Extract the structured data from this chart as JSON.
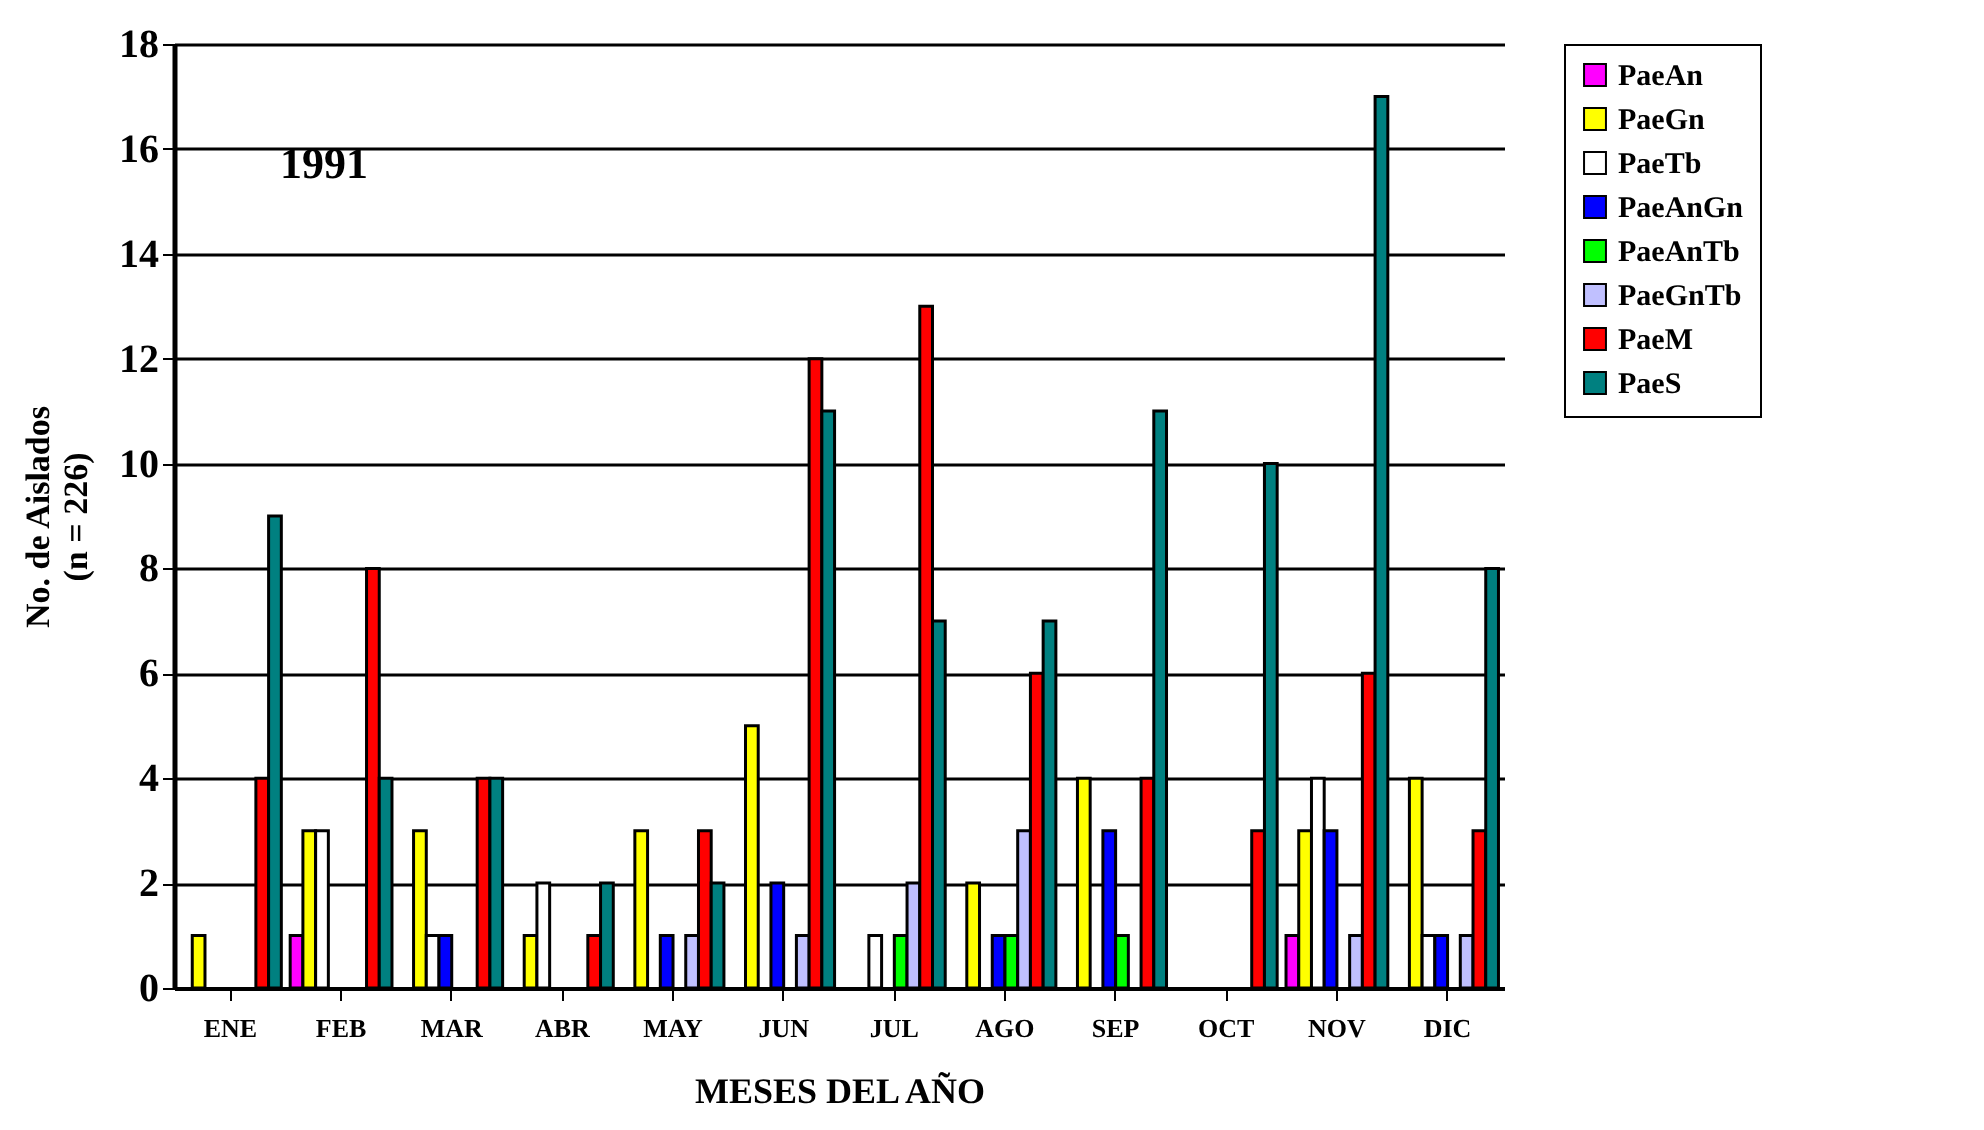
{
  "chart_data": {
    "type": "bar",
    "xlabel": "MESES DEL AÑO",
    "ylabel": "No. de Aislados\n(n = 226)",
    "categories": [
      "ENE",
      "FEB",
      "MAR",
      "ABR",
      "MAY",
      "JUN",
      "JUL",
      "AGO",
      "SEP",
      "OCT",
      "NOV",
      "DIC"
    ],
    "series": [
      {
        "name": "PaeAn",
        "color": "#ff00ff",
        "values": [
          0,
          1,
          0,
          0,
          0,
          0,
          0,
          0,
          0,
          0,
          1,
          0
        ]
      },
      {
        "name": "PaeGn",
        "color": "#ffff00",
        "values": [
          1,
          3,
          3,
          1,
          3,
          5,
          0,
          2,
          4,
          0,
          3,
          4
        ]
      },
      {
        "name": "PaeTb",
        "color": "#ffffff",
        "values": [
          0,
          3,
          1,
          2,
          0,
          0,
          1,
          0,
          0,
          0,
          4,
          1
        ]
      },
      {
        "name": "PaeAnGn",
        "color": "#0000ff",
        "values": [
          0,
          0,
          1,
          0,
          1,
          2,
          0,
          1,
          3,
          0,
          3,
          1
        ]
      },
      {
        "name": "PaeAnTb",
        "color": "#00ff00",
        "values": [
          0,
          0,
          0,
          0,
          0,
          0,
          1,
          1,
          1,
          0,
          0,
          0
        ]
      },
      {
        "name": "PaeGnTb",
        "color": "#c0c0ff",
        "values": [
          0,
          0,
          0,
          0,
          1,
          1,
          2,
          3,
          0,
          0,
          1,
          1
        ]
      },
      {
        "name": "PaeM",
        "color": "#ff0000",
        "values": [
          4,
          8,
          4,
          1,
          3,
          12,
          13,
          6,
          4,
          3,
          6,
          3
        ]
      },
      {
        "name": "PaeS",
        "color": "#008080",
        "values": [
          9,
          4,
          4,
          2,
          2,
          11,
          7,
          7,
          11,
          10,
          17,
          8
        ]
      }
    ],
    "ylim": [
      0,
      18
    ],
    "yticks": [
      0,
      2,
      4,
      6,
      8,
      10,
      12,
      14,
      16,
      18
    ],
    "grid": "y",
    "legend": "right",
    "annotations": [
      "1991"
    ]
  }
}
